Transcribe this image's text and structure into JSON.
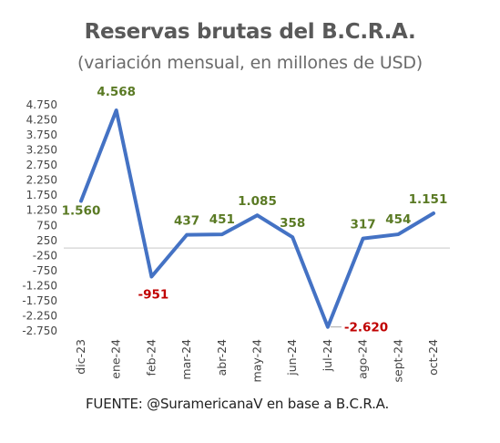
{
  "title": "Reservas brutas del B.C.R.A.",
  "subtitle": "(variación mensual, en millones de USD)",
  "source": "FUENTE: @SuramericanaV en base a B.C.R.A.",
  "chart_data": {
    "type": "line",
    "categories": [
      "dic-23",
      "ene-24",
      "feb-24",
      "mar-24",
      "abr-24",
      "may-24",
      "jun-24",
      "jul-24",
      "ago-24",
      "sept-24",
      "oct-24"
    ],
    "series": [
      {
        "values": [
          1560,
          4568,
          -951,
          437,
          451,
          1085,
          358,
          -2620,
          317,
          454,
          1151
        ],
        "color": "#4472c4"
      }
    ],
    "data_labels": [
      "1.560",
      "4.568",
      "-951",
      "437",
      "451",
      "1.085",
      "358",
      "-2.620",
      "317",
      "454",
      "1.151"
    ],
    "label_color_positive": "#5a7a24",
    "label_color_negative": "#c00000",
    "yticks": [
      4750,
      4250,
      3750,
      3250,
      2750,
      2250,
      1750,
      1250,
      750,
      250,
      -250,
      -750,
      -1250,
      -1750,
      -2250,
      -2750
    ],
    "ytick_labels": [
      "4.750",
      "4.250",
      "3.750",
      "3.250",
      "2.750",
      "2.250",
      "1.750",
      "1.250",
      "750",
      "250",
      "-250",
      "-750",
      "-1.250",
      "-1.750",
      "-2.250",
      "-2.750"
    ],
    "ylim": [
      -2750,
      4750
    ],
    "grid": false,
    "xlabel": "",
    "ylabel": ""
  }
}
